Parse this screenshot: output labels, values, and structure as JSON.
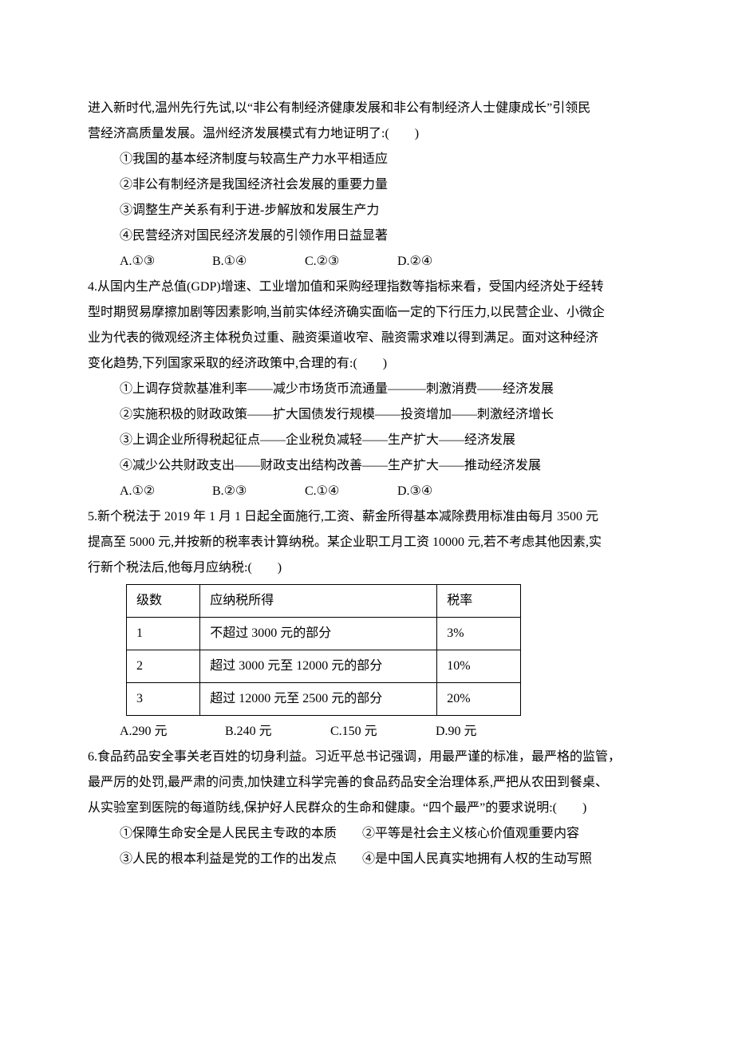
{
  "fontsize_pt": 16,
  "line_height": 2.0,
  "text_color": "#000000",
  "background_color": "#ffffff",
  "q3": {
    "lead_l1": "进入新时代,温州先行先试,以“非公有制经济健康发展和非公有制经济人士健康成长”引领民",
    "lead_l2": "营经济高质量发展。温州经济发展模式有力地证明了:(　　)",
    "opt1": "①我国的基本经济制度与较高生产力水平相适应",
    "opt2": "②非公有制经济是我国经济社会发展的重要力量",
    "opt3": "③调整生产关系有利于进-步解放和发展生产力",
    "opt4": "④民营经济对国民经济发展的引领作用日益显著",
    "A": "A.①③",
    "B": "B.①④",
    "C": "C.②③",
    "D": "D.②④"
  },
  "q4": {
    "lead_l1": "4.从国内生产总值(GDP)增速、工业增加值和采购经理指数等指标来看，受国内经济处于经转",
    "lead_l2": "型时期贸易摩擦加剧等因素影响,当前实体经济确实面临一定的下行压力,以民营企业、小微企",
    "lead_l3": "业为代表的微观经济主体税负过重、融资渠道收窄、融资需求难以得到满足。面对这种经济",
    "lead_l4": "变化趋势,下列国家采取的经济政策中,合理的有:(　　)",
    "opt1": "①上调存贷款基准利率——减少市场货币流通量———刺激消费——经济发展",
    "opt2": "②实施积极的财政政策——扩大国债发行规模——投资增加——刺激经济增长",
    "opt3": "③上调企业所得税起征点——企业税负减轻——生产扩大——经济发展",
    "opt4": "④减少公共财政支出——财政支出结构改善——生产扩大——推动经济发展",
    "A": "A.①②",
    "B": "B.②③",
    "C": "C.①④",
    "D": "D.③④"
  },
  "q5": {
    "lead_l1": "5.新个税法于 2019 年 1 月 1 日起全面施行,工资、薪金所得基本减除费用标准由每月 3500 元",
    "lead_l2": "提高至 5000 元,并按新的税率表计算纳税。某企业职工月工资 10000 元,若不考虑其他因素,实",
    "lead_l3": "行新个税法后,他每月应纳税:(　　)",
    "table": {
      "type": "table",
      "border_color": "#000000",
      "columns": [
        "级数",
        "应纳税所得",
        "税率"
      ],
      "col_widths_em": [
        4.2,
        17,
        5
      ],
      "rows": [
        [
          "1",
          "不超过 3000 元的部分",
          "3%"
        ],
        [
          "2",
          "超过 3000 元至 12000 元的部分",
          "10%"
        ],
        [
          "3",
          "超过 12000 元至 2500 元的部分",
          "20%"
        ]
      ]
    },
    "A": "A.290 元",
    "B": "B.240 元",
    "C": "C.150 元",
    "D": "D.90 元"
  },
  "q6": {
    "lead_l1": "6.食品药品安全事关老百姓的切身利益。习近平总书记强调，用最严谨的标准，最严格的监管，",
    "lead_l2": "最严厉的处罚,最严肃的问责,加快建立科学完善的食品药品安全治理体系,严把从农田到餐桌、",
    "lead_l3": "从实验室到医院的每道防线,保护好人民群众的生命和健康。“四个最严”的要求说明:(　　)",
    "opt1": "①保障生命安全是人民民主专政的本质　　②平等是社会主义核心价值观重要内容",
    "opt2": "③人民的根本利益是党的工作的出发点　　④是中国人民真实地拥有人权的生动写照"
  }
}
